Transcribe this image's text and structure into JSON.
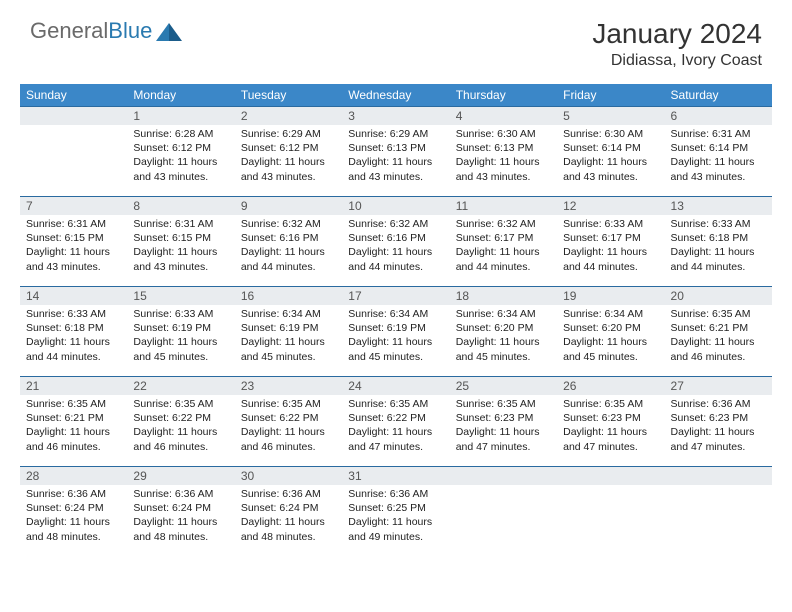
{
  "brand": {
    "part1": "General",
    "part2": "Blue"
  },
  "title": "January 2024",
  "location": "Didiassa, Ivory Coast",
  "colors": {
    "header_bg": "#3b87c8",
    "row_border": "#2a6aa0",
    "daynum_bg": "#e9ecef",
    "logo_gray": "#6a6a6a",
    "logo_blue": "#2a7ab0"
  },
  "days_of_week": [
    "Sunday",
    "Monday",
    "Tuesday",
    "Wednesday",
    "Thursday",
    "Friday",
    "Saturday"
  ],
  "weeks": [
    [
      null,
      {
        "n": "1",
        "sr": "6:28 AM",
        "ss": "6:12 PM",
        "dl": "11 hours and 43 minutes."
      },
      {
        "n": "2",
        "sr": "6:29 AM",
        "ss": "6:12 PM",
        "dl": "11 hours and 43 minutes."
      },
      {
        "n": "3",
        "sr": "6:29 AM",
        "ss": "6:13 PM",
        "dl": "11 hours and 43 minutes."
      },
      {
        "n": "4",
        "sr": "6:30 AM",
        "ss": "6:13 PM",
        "dl": "11 hours and 43 minutes."
      },
      {
        "n": "5",
        "sr": "6:30 AM",
        "ss": "6:14 PM",
        "dl": "11 hours and 43 minutes."
      },
      {
        "n": "6",
        "sr": "6:31 AM",
        "ss": "6:14 PM",
        "dl": "11 hours and 43 minutes."
      }
    ],
    [
      {
        "n": "7",
        "sr": "6:31 AM",
        "ss": "6:15 PM",
        "dl": "11 hours and 43 minutes."
      },
      {
        "n": "8",
        "sr": "6:31 AM",
        "ss": "6:15 PM",
        "dl": "11 hours and 43 minutes."
      },
      {
        "n": "9",
        "sr": "6:32 AM",
        "ss": "6:16 PM",
        "dl": "11 hours and 44 minutes."
      },
      {
        "n": "10",
        "sr": "6:32 AM",
        "ss": "6:16 PM",
        "dl": "11 hours and 44 minutes."
      },
      {
        "n": "11",
        "sr": "6:32 AM",
        "ss": "6:17 PM",
        "dl": "11 hours and 44 minutes."
      },
      {
        "n": "12",
        "sr": "6:33 AM",
        "ss": "6:17 PM",
        "dl": "11 hours and 44 minutes."
      },
      {
        "n": "13",
        "sr": "6:33 AM",
        "ss": "6:18 PM",
        "dl": "11 hours and 44 minutes."
      }
    ],
    [
      {
        "n": "14",
        "sr": "6:33 AM",
        "ss": "6:18 PM",
        "dl": "11 hours and 44 minutes."
      },
      {
        "n": "15",
        "sr": "6:33 AM",
        "ss": "6:19 PM",
        "dl": "11 hours and 45 minutes."
      },
      {
        "n": "16",
        "sr": "6:34 AM",
        "ss": "6:19 PM",
        "dl": "11 hours and 45 minutes."
      },
      {
        "n": "17",
        "sr": "6:34 AM",
        "ss": "6:19 PM",
        "dl": "11 hours and 45 minutes."
      },
      {
        "n": "18",
        "sr": "6:34 AM",
        "ss": "6:20 PM",
        "dl": "11 hours and 45 minutes."
      },
      {
        "n": "19",
        "sr": "6:34 AM",
        "ss": "6:20 PM",
        "dl": "11 hours and 45 minutes."
      },
      {
        "n": "20",
        "sr": "6:35 AM",
        "ss": "6:21 PM",
        "dl": "11 hours and 46 minutes."
      }
    ],
    [
      {
        "n": "21",
        "sr": "6:35 AM",
        "ss": "6:21 PM",
        "dl": "11 hours and 46 minutes."
      },
      {
        "n": "22",
        "sr": "6:35 AM",
        "ss": "6:22 PM",
        "dl": "11 hours and 46 minutes."
      },
      {
        "n": "23",
        "sr": "6:35 AM",
        "ss": "6:22 PM",
        "dl": "11 hours and 46 minutes."
      },
      {
        "n": "24",
        "sr": "6:35 AM",
        "ss": "6:22 PM",
        "dl": "11 hours and 47 minutes."
      },
      {
        "n": "25",
        "sr": "6:35 AM",
        "ss": "6:23 PM",
        "dl": "11 hours and 47 minutes."
      },
      {
        "n": "26",
        "sr": "6:35 AM",
        "ss": "6:23 PM",
        "dl": "11 hours and 47 minutes."
      },
      {
        "n": "27",
        "sr": "6:36 AM",
        "ss": "6:23 PM",
        "dl": "11 hours and 47 minutes."
      }
    ],
    [
      {
        "n": "28",
        "sr": "6:36 AM",
        "ss": "6:24 PM",
        "dl": "11 hours and 48 minutes."
      },
      {
        "n": "29",
        "sr": "6:36 AM",
        "ss": "6:24 PM",
        "dl": "11 hours and 48 minutes."
      },
      {
        "n": "30",
        "sr": "6:36 AM",
        "ss": "6:24 PM",
        "dl": "11 hours and 48 minutes."
      },
      {
        "n": "31",
        "sr": "6:36 AM",
        "ss": "6:25 PM",
        "dl": "11 hours and 49 minutes."
      },
      null,
      null,
      null
    ]
  ],
  "labels": {
    "sunrise": "Sunrise:",
    "sunset": "Sunset:",
    "daylight": "Daylight:"
  }
}
